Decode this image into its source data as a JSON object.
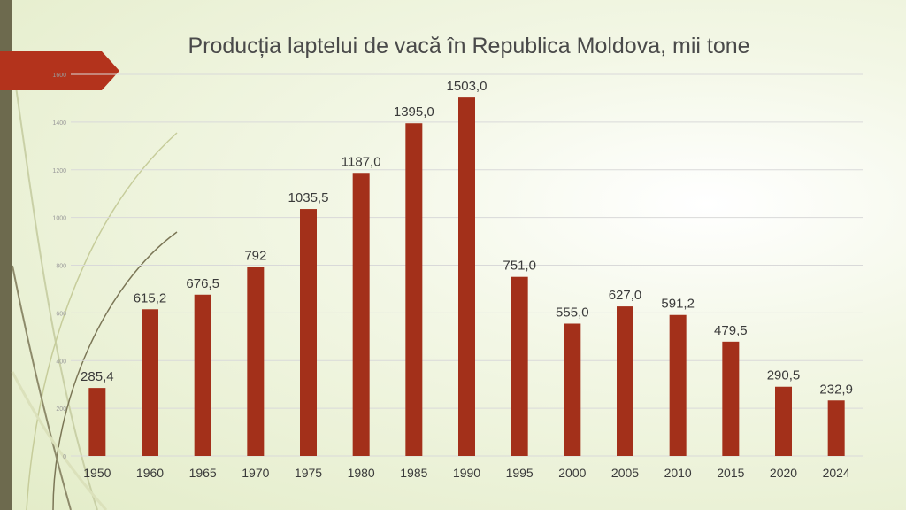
{
  "title": "Producția laptelui de vacă în Republica Moldova, mii tone",
  "colors": {
    "bar": "#a3301a",
    "accent_arrow": "#b3331c",
    "side_bar": "#6d6a4e",
    "grid": "#d9d9d9"
  },
  "chart_data": {
    "type": "bar",
    "title": "Producția laptelui de vacă în Republica Moldova, mii tone",
    "categories": [
      "1950",
      "1960",
      "1965",
      "1970",
      "1975",
      "1980",
      "1985",
      "1990",
      "1995",
      "2000",
      "2005",
      "2010",
      "2015",
      "2020",
      "2024"
    ],
    "values": [
      285.4,
      615.2,
      676.5,
      792,
      1035.5,
      1187.0,
      1395.0,
      1503.0,
      751.0,
      555.0,
      627.0,
      591.2,
      479.5,
      290.5,
      232.9
    ],
    "data_labels": [
      "285,4",
      "615,2",
      "676,5",
      "792",
      "1035,5",
      "1187,0",
      "1395,0",
      "1503,0",
      "751,0",
      "555,0",
      "627,0",
      "591,2",
      "479,5",
      "290,5",
      "232,9"
    ],
    "yticks": [
      0,
      200,
      400,
      600,
      800,
      1000,
      1200,
      1400,
      1600
    ],
    "ylim": [
      0,
      1600
    ],
    "grid": true,
    "legend": "none"
  }
}
